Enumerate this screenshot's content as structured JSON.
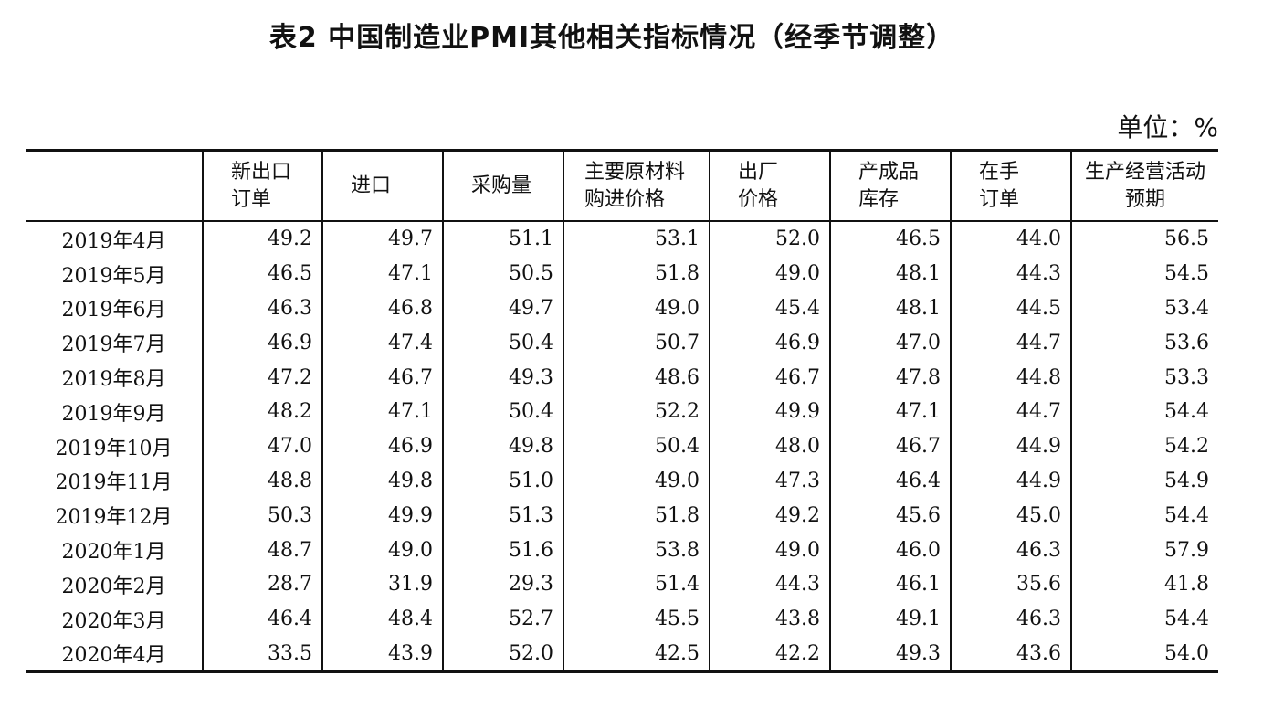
{
  "title": "表2 中国制造业PMI其他相关指标情况（经季节调整）",
  "unit": "单位：%",
  "table": {
    "headers": [
      "",
      "新出口\n订单",
      "进口",
      "采购量",
      "主要原材料\n购进价格",
      "出厂\n价格",
      "产成品\n库存",
      "在手\n订单",
      "生产经营活动\n预期"
    ],
    "rows": [
      [
        "2019年4月",
        "49.2",
        "49.7",
        "51.1",
        "53.1",
        "52.0",
        "46.5",
        "44.0",
        "56.5"
      ],
      [
        "2019年5月",
        "46.5",
        "47.1",
        "50.5",
        "51.8",
        "49.0",
        "48.1",
        "44.3",
        "54.5"
      ],
      [
        "2019年6月",
        "46.3",
        "46.8",
        "49.7",
        "49.0",
        "45.4",
        "48.1",
        "44.5",
        "53.4"
      ],
      [
        "2019年7月",
        "46.9",
        "47.4",
        "50.4",
        "50.7",
        "46.9",
        "47.0",
        "44.7",
        "53.6"
      ],
      [
        "2019年8月",
        "47.2",
        "46.7",
        "49.3",
        "48.6",
        "46.7",
        "47.8",
        "44.8",
        "53.3"
      ],
      [
        "2019年9月",
        "48.2",
        "47.1",
        "50.4",
        "52.2",
        "49.9",
        "47.1",
        "44.7",
        "54.4"
      ],
      [
        "2019年10月",
        "47.0",
        "46.9",
        "49.8",
        "50.4",
        "48.0",
        "46.7",
        "44.9",
        "54.2"
      ],
      [
        "2019年11月",
        "48.8",
        "49.8",
        "51.0",
        "49.0",
        "47.3",
        "46.4",
        "44.9",
        "54.9"
      ],
      [
        "2019年12月",
        "50.3",
        "49.9",
        "51.3",
        "51.8",
        "49.2",
        "45.6",
        "45.0",
        "54.4"
      ],
      [
        "2020年1月",
        "48.7",
        "49.0",
        "51.6",
        "53.8",
        "49.0",
        "46.0",
        "46.3",
        "57.9"
      ],
      [
        "2020年2月",
        "28.7",
        "31.9",
        "29.3",
        "51.4",
        "44.3",
        "46.1",
        "35.6",
        "41.8"
      ],
      [
        "2020年3月",
        "46.4",
        "48.4",
        "52.7",
        "45.5",
        "43.8",
        "49.1",
        "46.3",
        "54.4"
      ],
      [
        "2020年4月",
        "33.5",
        "43.9",
        "52.0",
        "42.5",
        "42.2",
        "49.3",
        "43.6",
        "54.0"
      ]
    ]
  }
}
